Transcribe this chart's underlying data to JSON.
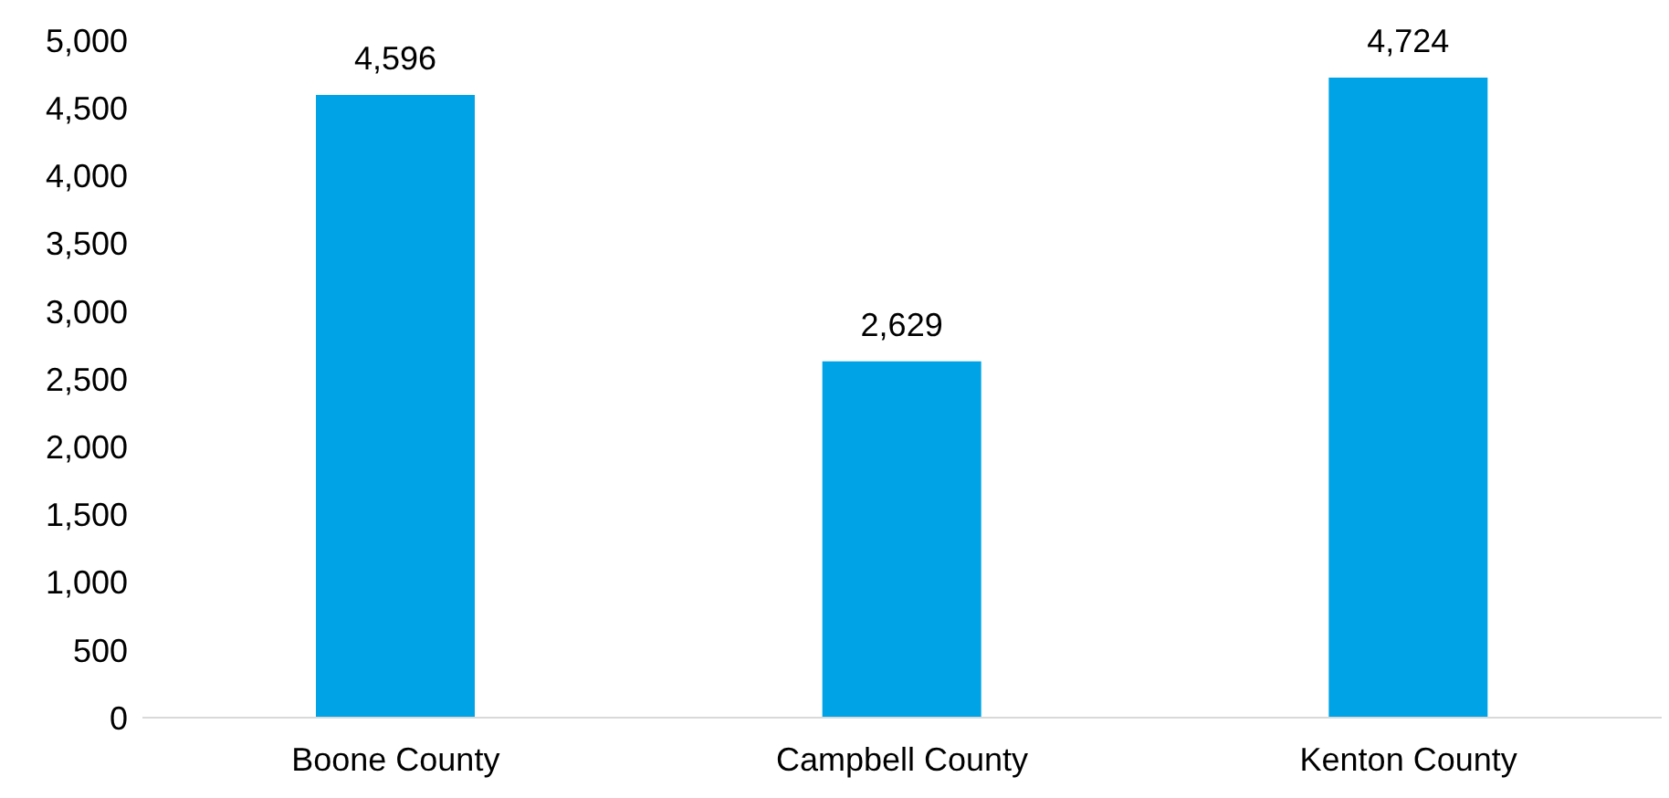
{
  "chart_data": {
    "type": "bar",
    "categories": [
      "Boone County",
      "Campbell County",
      "Kenton County"
    ],
    "values": [
      4596,
      2629,
      4724
    ],
    "value_labels": [
      "4,596",
      "2,629",
      "4,724"
    ],
    "color": "#00a3e6",
    "ylim": [
      0,
      5000
    ],
    "yticks": [
      0,
      500,
      {
        "value": 1000,
        "label": "1,000"
      },
      {
        "value": 1500,
        "label": "1,500"
      },
      {
        "value": 2000,
        "label": "2,000"
      },
      {
        "value": 2500,
        "label": "2,500"
      },
      {
        "value": 3000,
        "label": "3,000"
      },
      {
        "value": 3500,
        "label": "3,500"
      },
      {
        "value": 4000,
        "label": "4,000"
      },
      {
        "value": 4500,
        "label": "4,500"
      },
      {
        "value": 5000,
        "label": "5,000"
      }
    ],
    "grid": false
  }
}
